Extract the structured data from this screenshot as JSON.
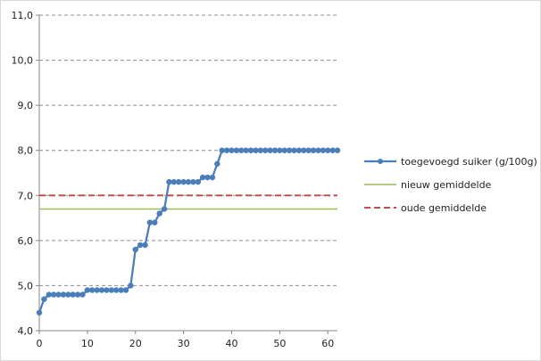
{
  "chart_data": {
    "type": "line",
    "title": "",
    "xlabel": "",
    "ylabel": "",
    "xlim": [
      0,
      62
    ],
    "ylim": [
      4.0,
      11.0
    ],
    "grid": "horizontal dashed",
    "legend_position": "right",
    "x_ticks": [
      "0",
      "10",
      "20",
      "30",
      "40",
      "50",
      "60"
    ],
    "y_ticks": [
      "4,0",
      "5,0",
      "6,0",
      "7,0",
      "8,0",
      "9,0",
      "10,0",
      "11,0"
    ],
    "series": [
      {
        "name": "toegevoegd suiker (g/100g)",
        "style": "line-markers",
        "color": "#4a7ebb",
        "x": [
          0,
          1,
          2,
          3,
          4,
          5,
          6,
          7,
          8,
          9,
          10,
          11,
          12,
          13,
          14,
          15,
          16,
          17,
          18,
          19,
          20,
          21,
          22,
          23,
          24,
          25,
          26,
          27,
          28,
          29,
          30,
          31,
          32,
          33,
          34,
          35,
          36,
          37,
          38,
          39,
          40,
          41,
          42,
          43,
          44,
          45,
          46,
          47,
          48,
          49,
          50,
          51,
          52,
          53,
          54,
          55,
          56,
          57,
          58,
          59,
          60,
          61,
          62
        ],
        "values": [
          4.4,
          4.7,
          4.8,
          4.8,
          4.8,
          4.8,
          4.8,
          4.8,
          4.8,
          4.8,
          4.9,
          4.9,
          4.9,
          4.9,
          4.9,
          4.9,
          4.9,
          4.9,
          4.9,
          5.0,
          5.8,
          5.9,
          5.9,
          6.4,
          6.4,
          6.6,
          6.7,
          7.3,
          7.3,
          7.3,
          7.3,
          7.3,
          7.3,
          7.3,
          7.4,
          7.4,
          7.4,
          7.7,
          8.0,
          8.0,
          8.0,
          8.0,
          8.0,
          8.0,
          8.0,
          8.0,
          8.0,
          8.0,
          8.0,
          8.0,
          8.0,
          8.0,
          8.0,
          8.0,
          8.0,
          8.0,
          8.0,
          8.0,
          8.0,
          8.0,
          8.0,
          8.0,
          8.0
        ]
      },
      {
        "name": "nieuw gemiddelde",
        "style": "solid-line",
        "color": "#9bbb59",
        "x": [
          0,
          62
        ],
        "values": [
          6.7,
          6.7
        ]
      },
      {
        "name": "oude gemiddelde",
        "style": "dashed-line",
        "color": "#c0504d",
        "x": [
          0,
          62
        ],
        "values": [
          7.0,
          7.0
        ]
      }
    ]
  }
}
